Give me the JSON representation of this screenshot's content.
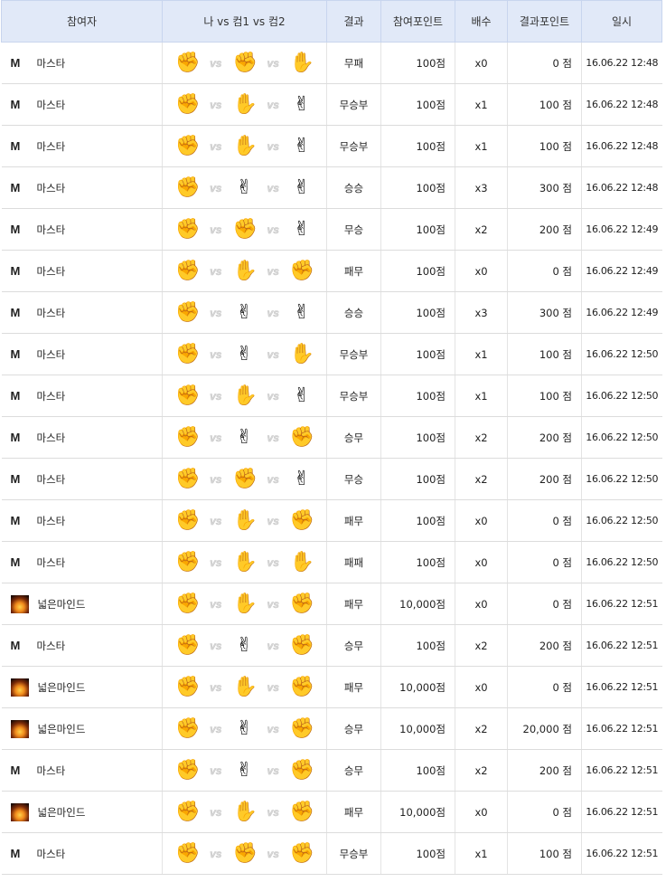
{
  "headers": [
    "참여자",
    "나 vs 컴1 vs 컴2",
    "결과",
    "참여포인트",
    "배수",
    "결과포인트",
    "일시"
  ],
  "vs_label": "vs",
  "hand_icons": {
    "rock": "✊",
    "paper": "✋",
    "scissors": "✌"
  },
  "rows": [
    {
      "user": "마스타",
      "avatar": "M",
      "hands": [
        "rock",
        "rock",
        "paper"
      ],
      "result": "무패",
      "points": "100점",
      "mult": "x0",
      "result_points": "0 점",
      "date": "16.06.22 12:48"
    },
    {
      "user": "마스타",
      "avatar": "M",
      "hands": [
        "rock",
        "paper",
        "scissors"
      ],
      "result": "무승부",
      "points": "100점",
      "mult": "x1",
      "result_points": "100 점",
      "date": "16.06.22 12:48"
    },
    {
      "user": "마스타",
      "avatar": "M",
      "hands": [
        "rock",
        "paper",
        "scissors"
      ],
      "result": "무승부",
      "points": "100점",
      "mult": "x1",
      "result_points": "100 점",
      "date": "16.06.22 12:48"
    },
    {
      "user": "마스타",
      "avatar": "M",
      "hands": [
        "rock",
        "scissors",
        "scissors"
      ],
      "result": "승승",
      "points": "100점",
      "mult": "x3",
      "result_points": "300 점",
      "date": "16.06.22 12:48"
    },
    {
      "user": "마스타",
      "avatar": "M",
      "hands": [
        "rock",
        "rock",
        "scissors"
      ],
      "result": "무승",
      "points": "100점",
      "mult": "x2",
      "result_points": "200 점",
      "date": "16.06.22 12:49"
    },
    {
      "user": "마스타",
      "avatar": "M",
      "hands": [
        "rock",
        "paper",
        "rock"
      ],
      "result": "패무",
      "points": "100점",
      "mult": "x0",
      "result_points": "0 점",
      "date": "16.06.22 12:49"
    },
    {
      "user": "마스타",
      "avatar": "M",
      "hands": [
        "rock",
        "scissors",
        "scissors"
      ],
      "result": "승승",
      "points": "100점",
      "mult": "x3",
      "result_points": "300 점",
      "date": "16.06.22 12:49"
    },
    {
      "user": "마스타",
      "avatar": "M",
      "hands": [
        "rock",
        "scissors",
        "paper"
      ],
      "result": "무승부",
      "points": "100점",
      "mult": "x1",
      "result_points": "100 점",
      "date": "16.06.22 12:50"
    },
    {
      "user": "마스타",
      "avatar": "M",
      "hands": [
        "rock",
        "paper",
        "scissors"
      ],
      "result": "무승부",
      "points": "100점",
      "mult": "x1",
      "result_points": "100 점",
      "date": "16.06.22 12:50"
    },
    {
      "user": "마스타",
      "avatar": "M",
      "hands": [
        "rock",
        "scissors",
        "rock"
      ],
      "result": "승무",
      "points": "100점",
      "mult": "x2",
      "result_points": "200 점",
      "date": "16.06.22 12:50"
    },
    {
      "user": "마스타",
      "avatar": "M",
      "hands": [
        "rock",
        "rock",
        "scissors"
      ],
      "result": "무승",
      "points": "100점",
      "mult": "x2",
      "result_points": "200 점",
      "date": "16.06.22 12:50"
    },
    {
      "user": "마스타",
      "avatar": "M",
      "hands": [
        "rock",
        "paper",
        "rock"
      ],
      "result": "패무",
      "points": "100점",
      "mult": "x0",
      "result_points": "0 점",
      "date": "16.06.22 12:50"
    },
    {
      "user": "마스타",
      "avatar": "M",
      "hands": [
        "rock",
        "paper",
        "paper"
      ],
      "result": "패패",
      "points": "100점",
      "mult": "x0",
      "result_points": "0 점",
      "date": "16.06.22 12:50"
    },
    {
      "user": "넓은마인드",
      "avatar": "fire",
      "hands": [
        "rock",
        "paper",
        "rock"
      ],
      "result": "패무",
      "points": "10,000점",
      "mult": "x0",
      "result_points": "0 점",
      "date": "16.06.22 12:51"
    },
    {
      "user": "마스타",
      "avatar": "M",
      "hands": [
        "rock",
        "scissors",
        "rock"
      ],
      "result": "승무",
      "points": "100점",
      "mult": "x2",
      "result_points": "200 점",
      "date": "16.06.22 12:51"
    },
    {
      "user": "넓은마인드",
      "avatar": "fire",
      "hands": [
        "rock",
        "paper",
        "rock"
      ],
      "result": "패무",
      "points": "10,000점",
      "mult": "x0",
      "result_points": "0 점",
      "date": "16.06.22 12:51"
    },
    {
      "user": "넓은마인드",
      "avatar": "fire",
      "hands": [
        "rock",
        "scissors",
        "rock"
      ],
      "result": "승무",
      "points": "10,000점",
      "mult": "x2",
      "result_points": "20,000 점",
      "date": "16.06.22 12:51"
    },
    {
      "user": "마스타",
      "avatar": "M",
      "hands": [
        "rock",
        "scissors",
        "rock"
      ],
      "result": "승무",
      "points": "100점",
      "mult": "x2",
      "result_points": "200 점",
      "date": "16.06.22 12:51"
    },
    {
      "user": "넓은마인드",
      "avatar": "fire",
      "hands": [
        "rock",
        "paper",
        "rock"
      ],
      "result": "패무",
      "points": "10,000점",
      "mult": "x0",
      "result_points": "0 점",
      "date": "16.06.22 12:51"
    },
    {
      "user": "마스타",
      "avatar": "M",
      "hands": [
        "rock",
        "rock",
        "rock"
      ],
      "result": "무승부",
      "points": "100점",
      "mult": "x1",
      "result_points": "100 점",
      "date": "16.06.22 12:51"
    }
  ]
}
